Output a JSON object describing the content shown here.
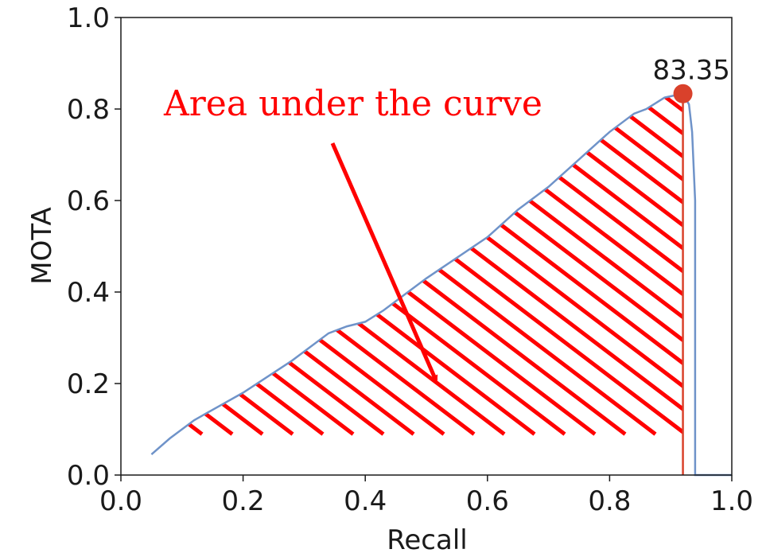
{
  "chart_data": {
    "type": "line",
    "title": "",
    "xlabel": "Recall",
    "ylabel": "MOTA",
    "xlim": [
      0.0,
      1.0
    ],
    "ylim": [
      0.0,
      1.0
    ],
    "xticks": [
      0.0,
      0.2,
      0.4,
      0.6,
      0.8,
      1.0
    ],
    "xtick_labels": [
      "0.0",
      "0.2",
      "0.4",
      "0.6",
      "0.8",
      "1.0"
    ],
    "yticks": [
      0.0,
      0.2,
      0.4,
      0.6,
      0.8,
      1.0
    ],
    "ytick_labels": [
      "0.0",
      "0.2",
      "0.4",
      "0.6",
      "0.8",
      "1.0"
    ],
    "grid": false,
    "series": [
      {
        "color": "#6f93c9",
        "x": [
          0.05,
          0.08,
          0.12,
          0.2,
          0.28,
          0.31,
          0.34,
          0.37,
          0.4,
          0.43,
          0.5,
          0.6,
          0.65,
          0.7,
          0.75,
          0.8,
          0.84,
          0.86,
          0.89,
          0.92,
          0.93,
          0.935,
          0.94,
          0.94,
          0.95,
          1.0
        ],
        "y": [
          0.045,
          0.08,
          0.12,
          0.18,
          0.25,
          0.28,
          0.31,
          0.325,
          0.335,
          0.36,
          0.43,
          0.52,
          0.58,
          0.63,
          0.69,
          0.75,
          0.79,
          0.8,
          0.825,
          0.8335,
          0.81,
          0.75,
          0.6,
          0.0,
          0.0,
          0.0
        ]
      }
    ],
    "marker": {
      "x": 0.92,
      "y": 0.8335,
      "label": "83.35",
      "color": "#d9412b"
    },
    "hatch_region": {
      "color": "#ff0000",
      "x_end": 0.92
    },
    "annotation": {
      "text": "Area under the curve",
      "color": "#ff0000"
    }
  }
}
